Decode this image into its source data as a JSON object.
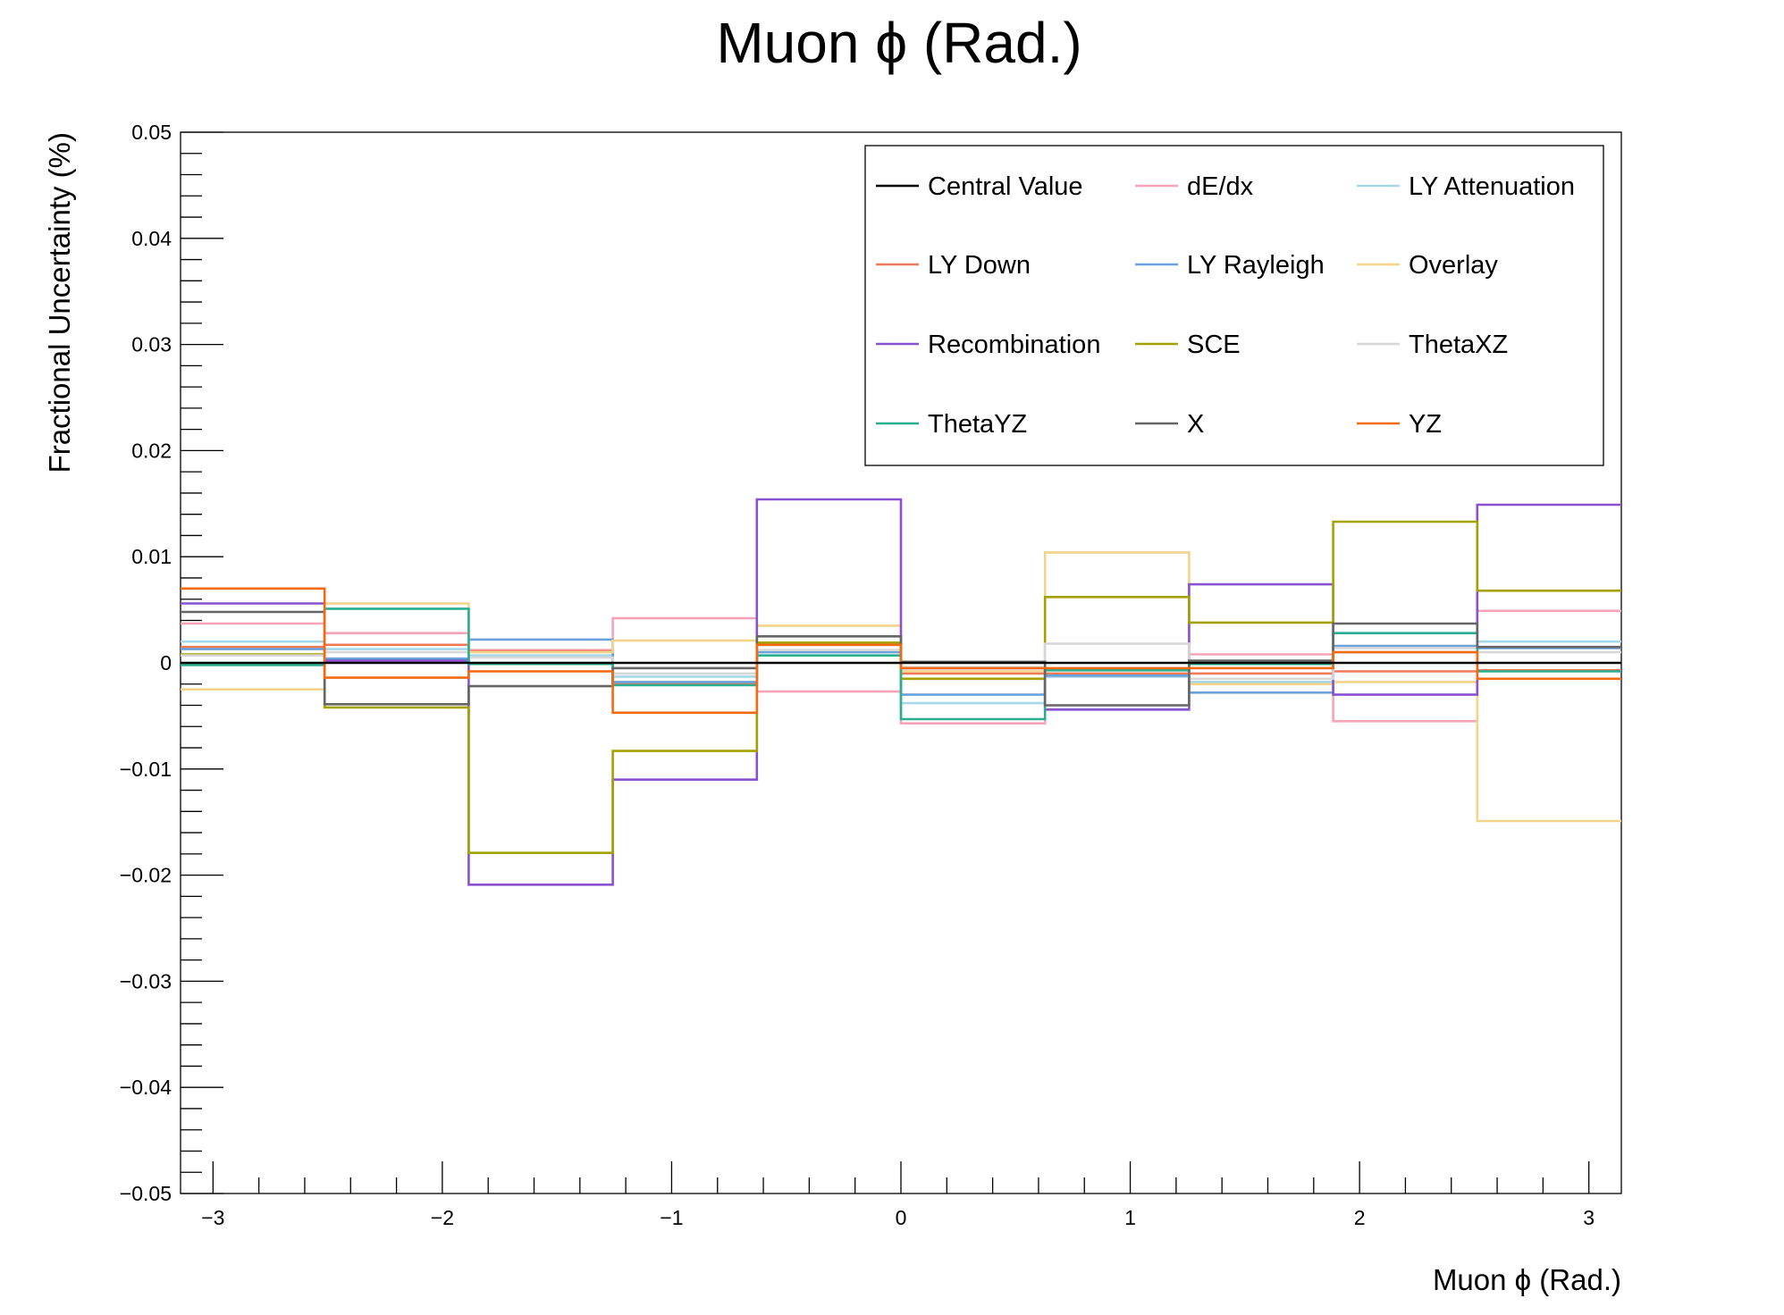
{
  "chart_data": {
    "type": "line",
    "style": "step-histogram",
    "title": "Muon ϕ (Rad.)",
    "xlabel": "Muon ϕ (Rad.)",
    "ylabel": "Fractional Uncertainty (%)",
    "xlim": [
      -3.14159,
      3.14159
    ],
    "ylim": [
      -0.05,
      0.05
    ],
    "x_ticks": [
      -3,
      -2,
      -1,
      0,
      1,
      2,
      3
    ],
    "x_tick_labels": [
      "−3",
      "−2",
      "−1",
      "0",
      "1",
      "2",
      "3"
    ],
    "y_ticks": [
      -0.05,
      -0.04,
      -0.03,
      -0.02,
      -0.01,
      0,
      0.01,
      0.02,
      0.03,
      0.04,
      0.05
    ],
    "y_tick_labels": [
      "−0.05",
      "−0.04",
      "−0.03",
      "−0.02",
      "−0.01",
      "0",
      "0.01",
      "0.02",
      "0.03",
      "0.04",
      "0.05"
    ],
    "bin_edges": [
      -3.14159,
      -2.51327,
      -1.88496,
      -1.25664,
      -0.62832,
      0,
      0.62832,
      1.25664,
      1.88496,
      2.51327,
      3.14159
    ],
    "legend_position": "top-right",
    "legend_columns": 3,
    "grid": false,
    "series": [
      {
        "name": "Central Value",
        "color": "#000000",
        "values": [
          0,
          0,
          0,
          0,
          0,
          0,
          0,
          0,
          0,
          0
        ]
      },
      {
        "name": "dE/dx",
        "color": "#f7a4b8",
        "values": [
          0.0037,
          0.0028,
          0.0012,
          0.0042,
          -0.0027,
          -0.0057,
          -0.0012,
          0.0008,
          -0.0055,
          0.0049
        ]
      },
      {
        "name": "LY Attenuation",
        "color": "#a6d8ea",
        "values": [
          0.002,
          0.0013,
          0.0007,
          -0.0013,
          0.0019,
          -0.0038,
          -0.0013,
          -0.0018,
          0.001,
          0.002
        ]
      },
      {
        "name": "LY Down",
        "color": "#ef7a5a",
        "values": [
          0.0015,
          0.0017,
          0.0011,
          -0.002,
          0.0017,
          -0.001,
          -0.001,
          -0.001,
          -0.0008,
          -0.0007
        ]
      },
      {
        "name": "LY Rayleigh",
        "color": "#6aa2db",
        "values": [
          0.0013,
          0.0004,
          0.0022,
          -0.0018,
          0.001,
          -0.003,
          -0.0012,
          -0.0028,
          0.0016,
          0.0014
        ]
      },
      {
        "name": "Overlay",
        "color": "#f2d48a",
        "values": [
          -0.0025,
          0.0056,
          0.001,
          0.0021,
          0.0035,
          -0.0008,
          0.0104,
          -0.002,
          -0.0018,
          -0.0149
        ]
      },
      {
        "name": "Recombination",
        "color": "#8a52d0",
        "values": [
          0.0056,
          0.0002,
          -0.0209,
          -0.011,
          0.0154,
          -0.0005,
          -0.0044,
          0.0074,
          -0.003,
          0.0149
        ]
      },
      {
        "name": "SCE",
        "color": "#a5a100",
        "values": [
          0.0008,
          -0.0042,
          -0.0179,
          -0.0083,
          0.0019,
          -0.0015,
          0.0062,
          0.0038,
          0.0133,
          0.0068
        ]
      },
      {
        "name": "ThetaXZ",
        "color": "#d7d7d7",
        "values": [
          0.0007,
          0.001,
          0.0005,
          -0.001,
          0.0012,
          -0.0004,
          0.0018,
          -0.0015,
          0.0014,
          0.001
        ]
      },
      {
        "name": "ThetaYZ",
        "color": "#2aae91",
        "values": [
          -0.0002,
          0.0051,
          -0.0001,
          -0.0021,
          0.0007,
          -0.0053,
          -0.0007,
          -0.0001,
          0.0028,
          -0.0008
        ]
      },
      {
        "name": "X",
        "color": "#666666",
        "values": [
          0.0048,
          -0.0039,
          -0.0022,
          -0.0005,
          0.0025,
          0.0001,
          -0.004,
          0.0002,
          0.0037,
          0.0015
        ]
      },
      {
        "name": "YZ",
        "color": "#f36a10",
        "values": [
          0.007,
          -0.0014,
          -0.0008,
          -0.0047,
          0.0017,
          -0.0005,
          -0.0005,
          -0.0005,
          0.001,
          -0.0015
        ]
      }
    ]
  }
}
